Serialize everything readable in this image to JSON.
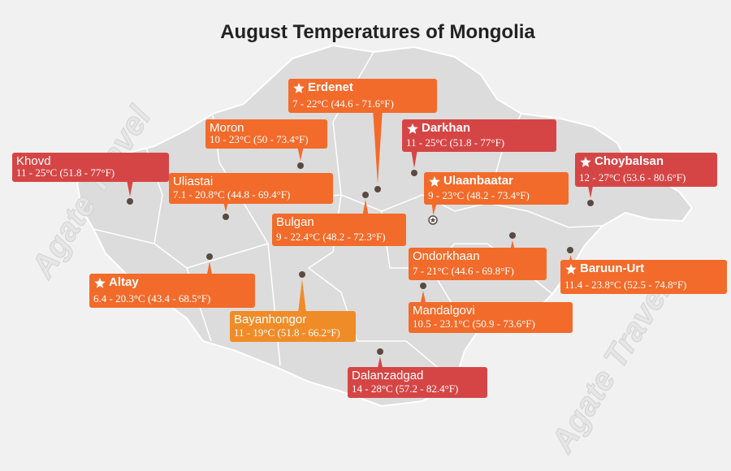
{
  "title": "August Temperatures of Mongolia",
  "watermarks": [
    "Agate Travel",
    "Agate Travel"
  ],
  "cities": [
    {
      "name": "Erdenet",
      "temps": "7 - 22°C (44.6 - 71.6°F)",
      "color": "#f26b2b",
      "star": true
    },
    {
      "name": "Moron",
      "temps": "10 - 23°C (50 - 73.4°F)",
      "color": "#f26b2b",
      "star": false
    },
    {
      "name": "Darkhan",
      "temps": "11 - 25°C (51.8 - 77°F)",
      "color": "#d64545",
      "star": true
    },
    {
      "name": "Khovd",
      "temps": "11 - 25°C (51.8 - 77°F)",
      "color": "#d64545",
      "star": false
    },
    {
      "name": "Choybalsan",
      "temps": "12 - 27°C (53.6 - 80.6°F)",
      "color": "#d64545",
      "star": true
    },
    {
      "name": "Uliastai",
      "temps": "7.1 - 20.8°C (44.8 - 69.4°F)",
      "color": "#f26b2b",
      "star": false
    },
    {
      "name": "Ulaanbaatar",
      "temps": "9 - 23°C (48.2 - 73.4°F)",
      "color": "#f26b2b",
      "star": true
    },
    {
      "name": "Bulgan",
      "temps": "9 - 22.4°C (48.2 - 72.3°F)",
      "color": "#f26b2b",
      "star": false
    },
    {
      "name": "Ondorkhaan",
      "temps": "7 - 21°C (44.6 - 69.8°F)",
      "color": "#f26b2b",
      "star": false
    },
    {
      "name": "Baruun-Urt",
      "temps": "11.4 - 23.8°C (52.5 - 74.8°F)",
      "color": "#f26b2b",
      "star": true
    },
    {
      "name": "Altay",
      "temps": "6.4 - 20.3°C (43.4 - 68.5°F)",
      "color": "#f26b2b",
      "star": true
    },
    {
      "name": "Bayanhongor",
      "temps": "11 - 19°C (51.8 - 66.2°F)",
      "color": "#f08c28",
      "star": false
    },
    {
      "name": "Mandalgovi",
      "temps": "10.5 - 23.1°C (50.9 - 73.6°F)",
      "color": "#f26b2b",
      "star": false
    },
    {
      "name": "Dalanzadgad",
      "temps": "14 - 28°C (57.2 - 82.4°F)",
      "color": "#d64545",
      "star": false
    }
  ]
}
